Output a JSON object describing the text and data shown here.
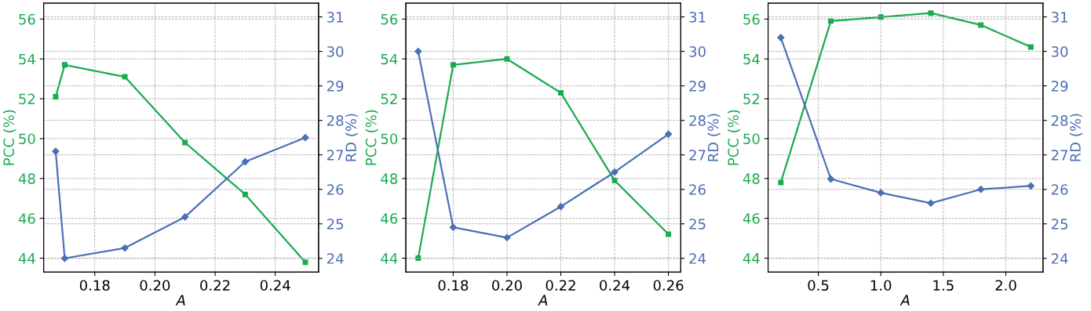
{
  "chart_data": [
    {
      "type": "line",
      "xlabel": "A",
      "ylabel": "PCC (%)",
      "y2label": "RD (%)",
      "x": [
        0.167,
        0.17,
        0.19,
        0.21,
        0.23,
        0.25
      ],
      "series": [
        {
          "color": "#1aab50",
          "marker": "square",
          "values": [
            52.1,
            53.7,
            53.1,
            49.8,
            47.2,
            43.8
          ]
        },
        {
          "color": "#4c6fb5",
          "marker": "diamond",
          "axis": "y2",
          "values": [
            27.1,
            24.0,
            24.3,
            25.2,
            26.8,
            27.5
          ]
        }
      ],
      "xlim": [
        0.163,
        0.2544
      ],
      "xticks": [
        0.18,
        {
          "value": 0.2,
          "label": "0.20"
        },
        0.22,
        0.24
      ],
      "ylim": [
        43.3,
        56.8
      ],
      "yticks": [
        44,
        46,
        48,
        50,
        52,
        54,
        56
      ],
      "y2lim": [
        23.6,
        31.4
      ],
      "y2ticks": [
        24,
        25,
        26,
        27,
        28,
        29,
        30,
        31
      ],
      "grid": true,
      "line_style": "solid"
    },
    {
      "type": "line",
      "xlabel": "A",
      "ylabel": "PCC (%)",
      "y2label": "RD (%)",
      "x": [
        0.167,
        0.18,
        0.2,
        0.22,
        0.24,
        0.26
      ],
      "series": [
        {
          "color": "#1aab50",
          "marker": "square",
          "values": [
            44.0,
            53.7,
            54.0,
            52.3,
            47.9,
            45.2
          ]
        },
        {
          "color": "#4c6fb5",
          "marker": "diamond",
          "axis": "y2",
          "values": [
            30.0,
            24.9,
            24.6,
            25.5,
            26.5,
            27.6
          ]
        }
      ],
      "xlim": [
        0.1624,
        0.2646
      ],
      "xticks": [
        0.18,
        {
          "value": 0.2,
          "label": "0.20"
        },
        0.22,
        0.24,
        0.26
      ],
      "ylim": [
        43.3,
        56.8
      ],
      "yticks": [
        44,
        46,
        48,
        50,
        52,
        54,
        56
      ],
      "y2lim": [
        23.6,
        31.4
      ],
      "y2ticks": [
        24,
        25,
        26,
        27,
        28,
        29,
        30,
        31
      ],
      "grid": true,
      "line_style": "solid"
    },
    {
      "type": "line",
      "xlabel": "A",
      "ylabel": "PCC (%)",
      "y2label": "RD (%)",
      "x": [
        0.2,
        0.6,
        1.0,
        1.4,
        1.8,
        2.2
      ],
      "series": [
        {
          "color": "#1aab50",
          "marker": "square",
          "values": [
            47.8,
            55.9,
            56.1,
            56.3,
            55.7,
            54.6
          ]
        },
        {
          "color": "#4c6fb5",
          "marker": "diamond",
          "axis": "y2",
          "values": [
            30.4,
            26.3,
            25.9,
            25.6,
            26.0,
            26.1
          ]
        }
      ],
      "xlim": [
        0.098,
        2.297
      ],
      "xticks": [
        0.5,
        {
          "value": 1.0,
          "label": "1.0"
        },
        1.5,
        {
          "value": 2.0,
          "label": "2.0"
        }
      ],
      "ylim": [
        43.3,
        56.8
      ],
      "yticks": [
        44,
        46,
        48,
        50,
        52,
        54,
        56
      ],
      "y2lim": [
        23.6,
        31.4
      ],
      "y2ticks": [
        24,
        25,
        26,
        27,
        28,
        29,
        30,
        31
      ],
      "grid": true,
      "line_style": "solid"
    }
  ]
}
